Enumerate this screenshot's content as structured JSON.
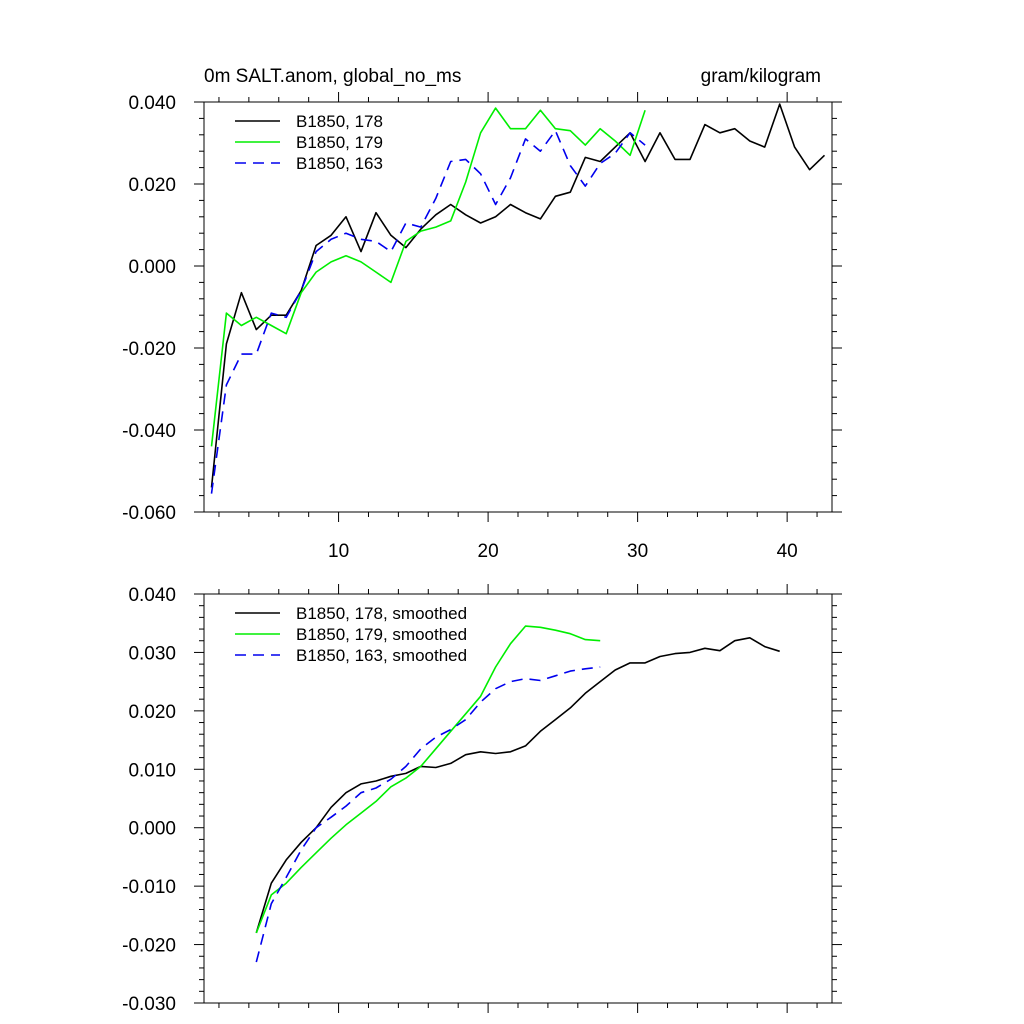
{
  "chart_data": [
    {
      "type": "line",
      "title_left": "0m SALT.anom, global_no_ms",
      "title_right": "gram/kilogram",
      "xlim": [
        1,
        43
      ],
      "ylim": [
        -0.06,
        0.04
      ],
      "xticks": [
        10,
        20,
        30,
        40
      ],
      "xtick_labels": [
        "10",
        "20",
        "30",
        "40"
      ],
      "yticks": [
        -0.06,
        -0.04,
        -0.02,
        0.0,
        0.02,
        0.04
      ],
      "ytick_labels": [
        "-0.060",
        "-0.040",
        "-0.020",
        "0.000",
        "0.020",
        "0.040"
      ],
      "legend_location": "top-left",
      "series": [
        {
          "name": "B1850, 178",
          "color": "#000000",
          "dash": "solid",
          "x": [
            1.5,
            2.5,
            3.5,
            4.5,
            5.5,
            6.5,
            7.5,
            8.5,
            9.5,
            10.5,
            11.5,
            12.5,
            13.5,
            14.5,
            15.5,
            16.5,
            17.5,
            18.5,
            19.5,
            20.5,
            21.5,
            22.5,
            23.5,
            24.5,
            25.5,
            26.5,
            27.5,
            28.5,
            29.5,
            30.5,
            31.5,
            32.5,
            33.5,
            34.5,
            35.5,
            36.5,
            37.5,
            38.5,
            39.5,
            40.5,
            41.5,
            42.5
          ],
          "values": [
            -0.054,
            -0.019,
            -0.0065,
            -0.0155,
            -0.012,
            -0.012,
            -0.006,
            0.005,
            0.0075,
            0.012,
            0.0035,
            0.013,
            0.0075,
            0.0045,
            0.009,
            0.0125,
            0.015,
            0.0125,
            0.0105,
            0.012,
            0.015,
            0.013,
            0.0115,
            0.017,
            0.018,
            0.0265,
            0.0255,
            0.029,
            0.0325,
            0.0255,
            0.0325,
            0.026,
            0.026,
            0.0345,
            0.0325,
            0.0335,
            0.0305,
            0.029,
            0.0395,
            0.029,
            0.0235,
            0.027
          ]
        },
        {
          "name": "B1850, 179",
          "color": "#00ee00",
          "dash": "solid",
          "x": [
            1.5,
            2.5,
            3.5,
            4.5,
            5.5,
            6.5,
            7.5,
            8.5,
            9.5,
            10.5,
            11.5,
            12.5,
            13.5,
            14.5,
            15.5,
            16.5,
            17.5,
            18.5,
            19.5,
            20.5,
            21.5,
            22.5,
            23.5,
            24.5,
            25.5,
            26.5,
            27.5,
            28.5,
            29.5,
            30.5
          ],
          "values": [
            -0.044,
            -0.0115,
            -0.0145,
            -0.0125,
            -0.0145,
            -0.0165,
            -0.0065,
            -0.0015,
            0.001,
            0.0025,
            0.001,
            -0.0015,
            -0.004,
            0.006,
            0.0085,
            0.0095,
            0.011,
            0.0205,
            0.0325,
            0.0385,
            0.0335,
            0.0335,
            0.038,
            0.0335,
            0.033,
            0.0295,
            0.0335,
            0.0305,
            0.027,
            0.038
          ]
        },
        {
          "name": "B1850, 163",
          "color": "#0000ee",
          "dash": "dashed",
          "x": [
            1.5,
            2.5,
            3.5,
            4.5,
            5.5,
            6.5,
            7.5,
            8.5,
            9.5,
            10.5,
            11.5,
            12.5,
            13.5,
            14.5,
            15.5,
            16.5,
            17.5,
            18.5,
            19.5,
            20.5,
            21.5,
            22.5,
            23.5,
            24.5,
            25.5,
            26.5,
            27.5,
            28.5,
            29.5,
            30.5
          ],
          "values": [
            -0.0555,
            -0.029,
            -0.0215,
            -0.0215,
            -0.0115,
            -0.0125,
            -0.006,
            0.0035,
            0.0065,
            0.008,
            0.0065,
            0.006,
            0.0035,
            0.0105,
            0.0095,
            0.0165,
            0.0255,
            0.026,
            0.0225,
            0.015,
            0.0215,
            0.031,
            0.028,
            0.033,
            0.0245,
            0.0195,
            0.025,
            0.0275,
            0.0325,
            0.0295
          ]
        }
      ]
    },
    {
      "type": "line",
      "xlim": [
        1,
        43
      ],
      "ylim": [
        -0.03,
        0.04
      ],
      "xticks": [
        10,
        20,
        30,
        40
      ],
      "yticks": [
        -0.03,
        -0.02,
        -0.01,
        0.0,
        0.01,
        0.02,
        0.03,
        0.04
      ],
      "ytick_labels": [
        "-0.030",
        "-0.020",
        "-0.010",
        "0.000",
        "0.010",
        "0.020",
        "0.030",
        "0.040"
      ],
      "legend_location": "top-left",
      "series": [
        {
          "name": "B1850, 178, smoothed",
          "color": "#000000",
          "dash": "solid",
          "x": [
            4.5,
            5.5,
            6.5,
            7.5,
            8.5,
            9.5,
            10.5,
            11.5,
            12.5,
            13.5,
            14.5,
            15.5,
            16.5,
            17.5,
            18.5,
            19.5,
            20.5,
            21.5,
            22.5,
            23.5,
            24.5,
            25.5,
            26.5,
            27.5,
            28.5,
            29.5,
            30.5,
            31.5,
            32.5,
            33.5,
            34.5,
            35.5,
            36.5,
            37.5,
            38.5,
            39.5
          ],
          "values": [
            -0.018,
            -0.0095,
            -0.0055,
            -0.0025,
            0.0,
            0.0035,
            0.006,
            0.0075,
            0.008,
            0.0088,
            0.0093,
            0.0105,
            0.0103,
            0.011,
            0.0125,
            0.013,
            0.0127,
            0.013,
            0.014,
            0.0165,
            0.0185,
            0.0205,
            0.023,
            0.025,
            0.027,
            0.0282,
            0.0282,
            0.0293,
            0.0298,
            0.03,
            0.0307,
            0.0303,
            0.032,
            0.0325,
            0.031,
            0.0302
          ]
        },
        {
          "name": "B1850, 179, smoothed",
          "color": "#00ee00",
          "dash": "solid",
          "x": [
            4.5,
            5.5,
            6.5,
            7.5,
            8.5,
            9.5,
            10.5,
            11.5,
            12.5,
            13.5,
            14.5,
            15.5,
            16.5,
            17.5,
            18.5,
            19.5,
            20.5,
            21.5,
            22.5,
            23.5,
            24.5,
            25.5,
            26.5,
            27.5
          ],
          "values": [
            -0.018,
            -0.0115,
            -0.0095,
            -0.0068,
            -0.0043,
            -0.0018,
            0.0005,
            0.0025,
            0.0045,
            0.007,
            0.0085,
            0.0105,
            0.0135,
            0.0165,
            0.0195,
            0.0225,
            0.0275,
            0.0315,
            0.0345,
            0.0343,
            0.0338,
            0.0332,
            0.0322,
            0.032
          ]
        },
        {
          "name": "B1850, 163, smoothed",
          "color": "#0000ee",
          "dash": "dashed",
          "x": [
            4.5,
            5.5,
            6.5,
            7.5,
            8.5,
            9.5,
            10.5,
            11.5,
            12.5,
            13.5,
            14.5,
            15.5,
            16.5,
            17.5,
            18.5,
            19.5,
            20.5,
            21.5,
            22.5,
            23.5,
            24.5,
            25.5,
            26.5,
            27.5
          ],
          "values": [
            -0.023,
            -0.013,
            -0.0085,
            -0.0038,
            0.0,
            0.0018,
            0.0037,
            0.006,
            0.0068,
            0.0083,
            0.0105,
            0.0135,
            0.0155,
            0.0168,
            0.0185,
            0.0215,
            0.0238,
            0.025,
            0.0255,
            0.0252,
            0.026,
            0.0268,
            0.0272,
            0.0275
          ]
        }
      ]
    }
  ]
}
